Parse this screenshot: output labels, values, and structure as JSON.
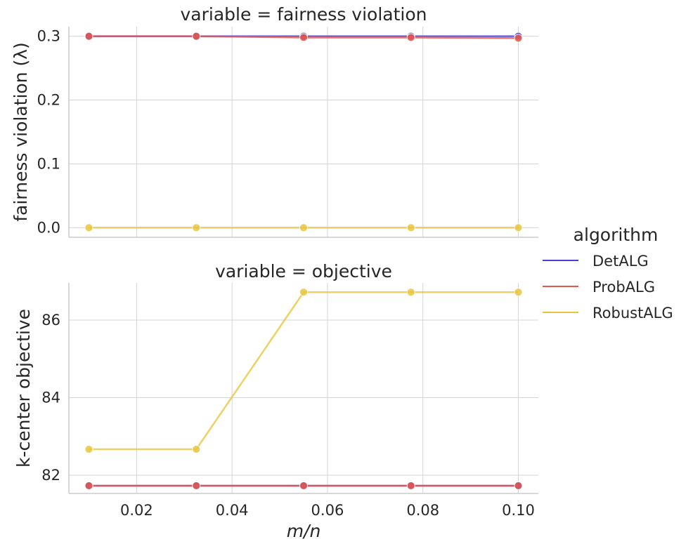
{
  "chart_data": {
    "type": "line",
    "xlabel": "m/n",
    "x_ticks": [
      "0.02",
      "0.04",
      "0.06",
      "0.08",
      "0.10"
    ],
    "x": [
      0.01,
      0.0325,
      0.055,
      0.0775,
      0.1
    ],
    "xlim": [
      0.0058,
      0.1042
    ],
    "shared_x": true,
    "grid": true,
    "legend": {
      "title": "algorithm",
      "placement": "right",
      "entries": [
        {
          "name": "DetALG",
          "color": "#4a3fd8"
        },
        {
          "name": "ProbALG",
          "color": "#e4574c"
        },
        {
          "name": "RobustALG",
          "color": "#e8c53e"
        }
      ]
    },
    "panels": [
      {
        "title": "variable = fairness violation",
        "ylabel": "fairness violation (λ)",
        "y_ticks": [
          "0.0",
          "0.1",
          "0.2",
          "0.3"
        ],
        "ylim": [
          -0.015,
          0.315
        ],
        "series": [
          {
            "name": "DetALG",
            "values": [
              0.3,
              0.3,
              0.3,
              0.3,
              0.3
            ]
          },
          {
            "name": "ProbALG",
            "values": [
              0.3,
              0.3,
              0.298,
              0.298,
              0.297
            ]
          },
          {
            "name": "RobustALG",
            "values": [
              0.0,
              0.0,
              0.0,
              0.0,
              0.0
            ]
          }
        ]
      },
      {
        "title": "variable = objective",
        "ylabel": "k-center objective",
        "y_ticks": [
          "82",
          "84",
          "86"
        ],
        "ylim": [
          81.53,
          86.96
        ],
        "series": [
          {
            "name": "DetALG",
            "values": [
              81.73,
              81.73,
              81.73,
              81.73,
              81.73
            ]
          },
          {
            "name": "ProbALG",
            "values": [
              81.73,
              81.73,
              81.73,
              81.73,
              81.73
            ]
          },
          {
            "name": "RobustALG",
            "values": [
              82.67,
              82.67,
              86.72,
              86.72,
              86.72
            ]
          }
        ]
      }
    ]
  }
}
